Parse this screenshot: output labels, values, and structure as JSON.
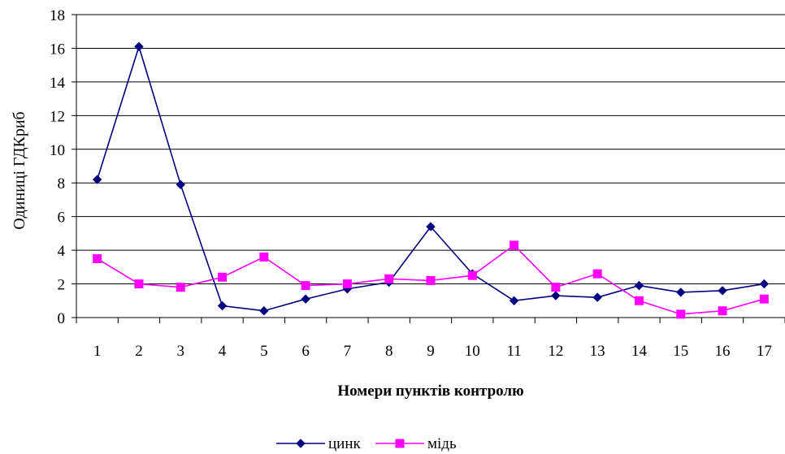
{
  "chart_data": {
    "type": "line",
    "xlabel": "Номери пунктів контролю",
    "ylabel": "Одиниці ГДКриб",
    "categories": [
      "1",
      "2",
      "3",
      "4",
      "5",
      "6",
      "7",
      "8",
      "9",
      "10",
      "11",
      "12",
      "13",
      "14",
      "15",
      "16",
      "17"
    ],
    "ylim": [
      0,
      18
    ],
    "yticks": [
      0,
      2,
      4,
      6,
      8,
      10,
      12,
      14,
      16,
      18
    ],
    "grid": true,
    "legend_position": "bottom",
    "series": [
      {
        "name": "цинк",
        "color": "#000080",
        "marker": "diamond",
        "values": [
          8.2,
          16.1,
          7.9,
          0.7,
          0.4,
          1.1,
          1.7,
          2.1,
          5.4,
          2.6,
          1.0,
          1.3,
          1.2,
          1.9,
          1.5,
          1.6,
          2.0
        ]
      },
      {
        "name": "мідь",
        "color": "#ff00ff",
        "marker": "square",
        "values": [
          3.5,
          2.0,
          1.8,
          2.4,
          3.6,
          1.9,
          2.0,
          2.3,
          2.2,
          2.5,
          4.3,
          1.8,
          2.6,
          1.0,
          0.2,
          0.4,
          1.1
        ]
      }
    ]
  }
}
